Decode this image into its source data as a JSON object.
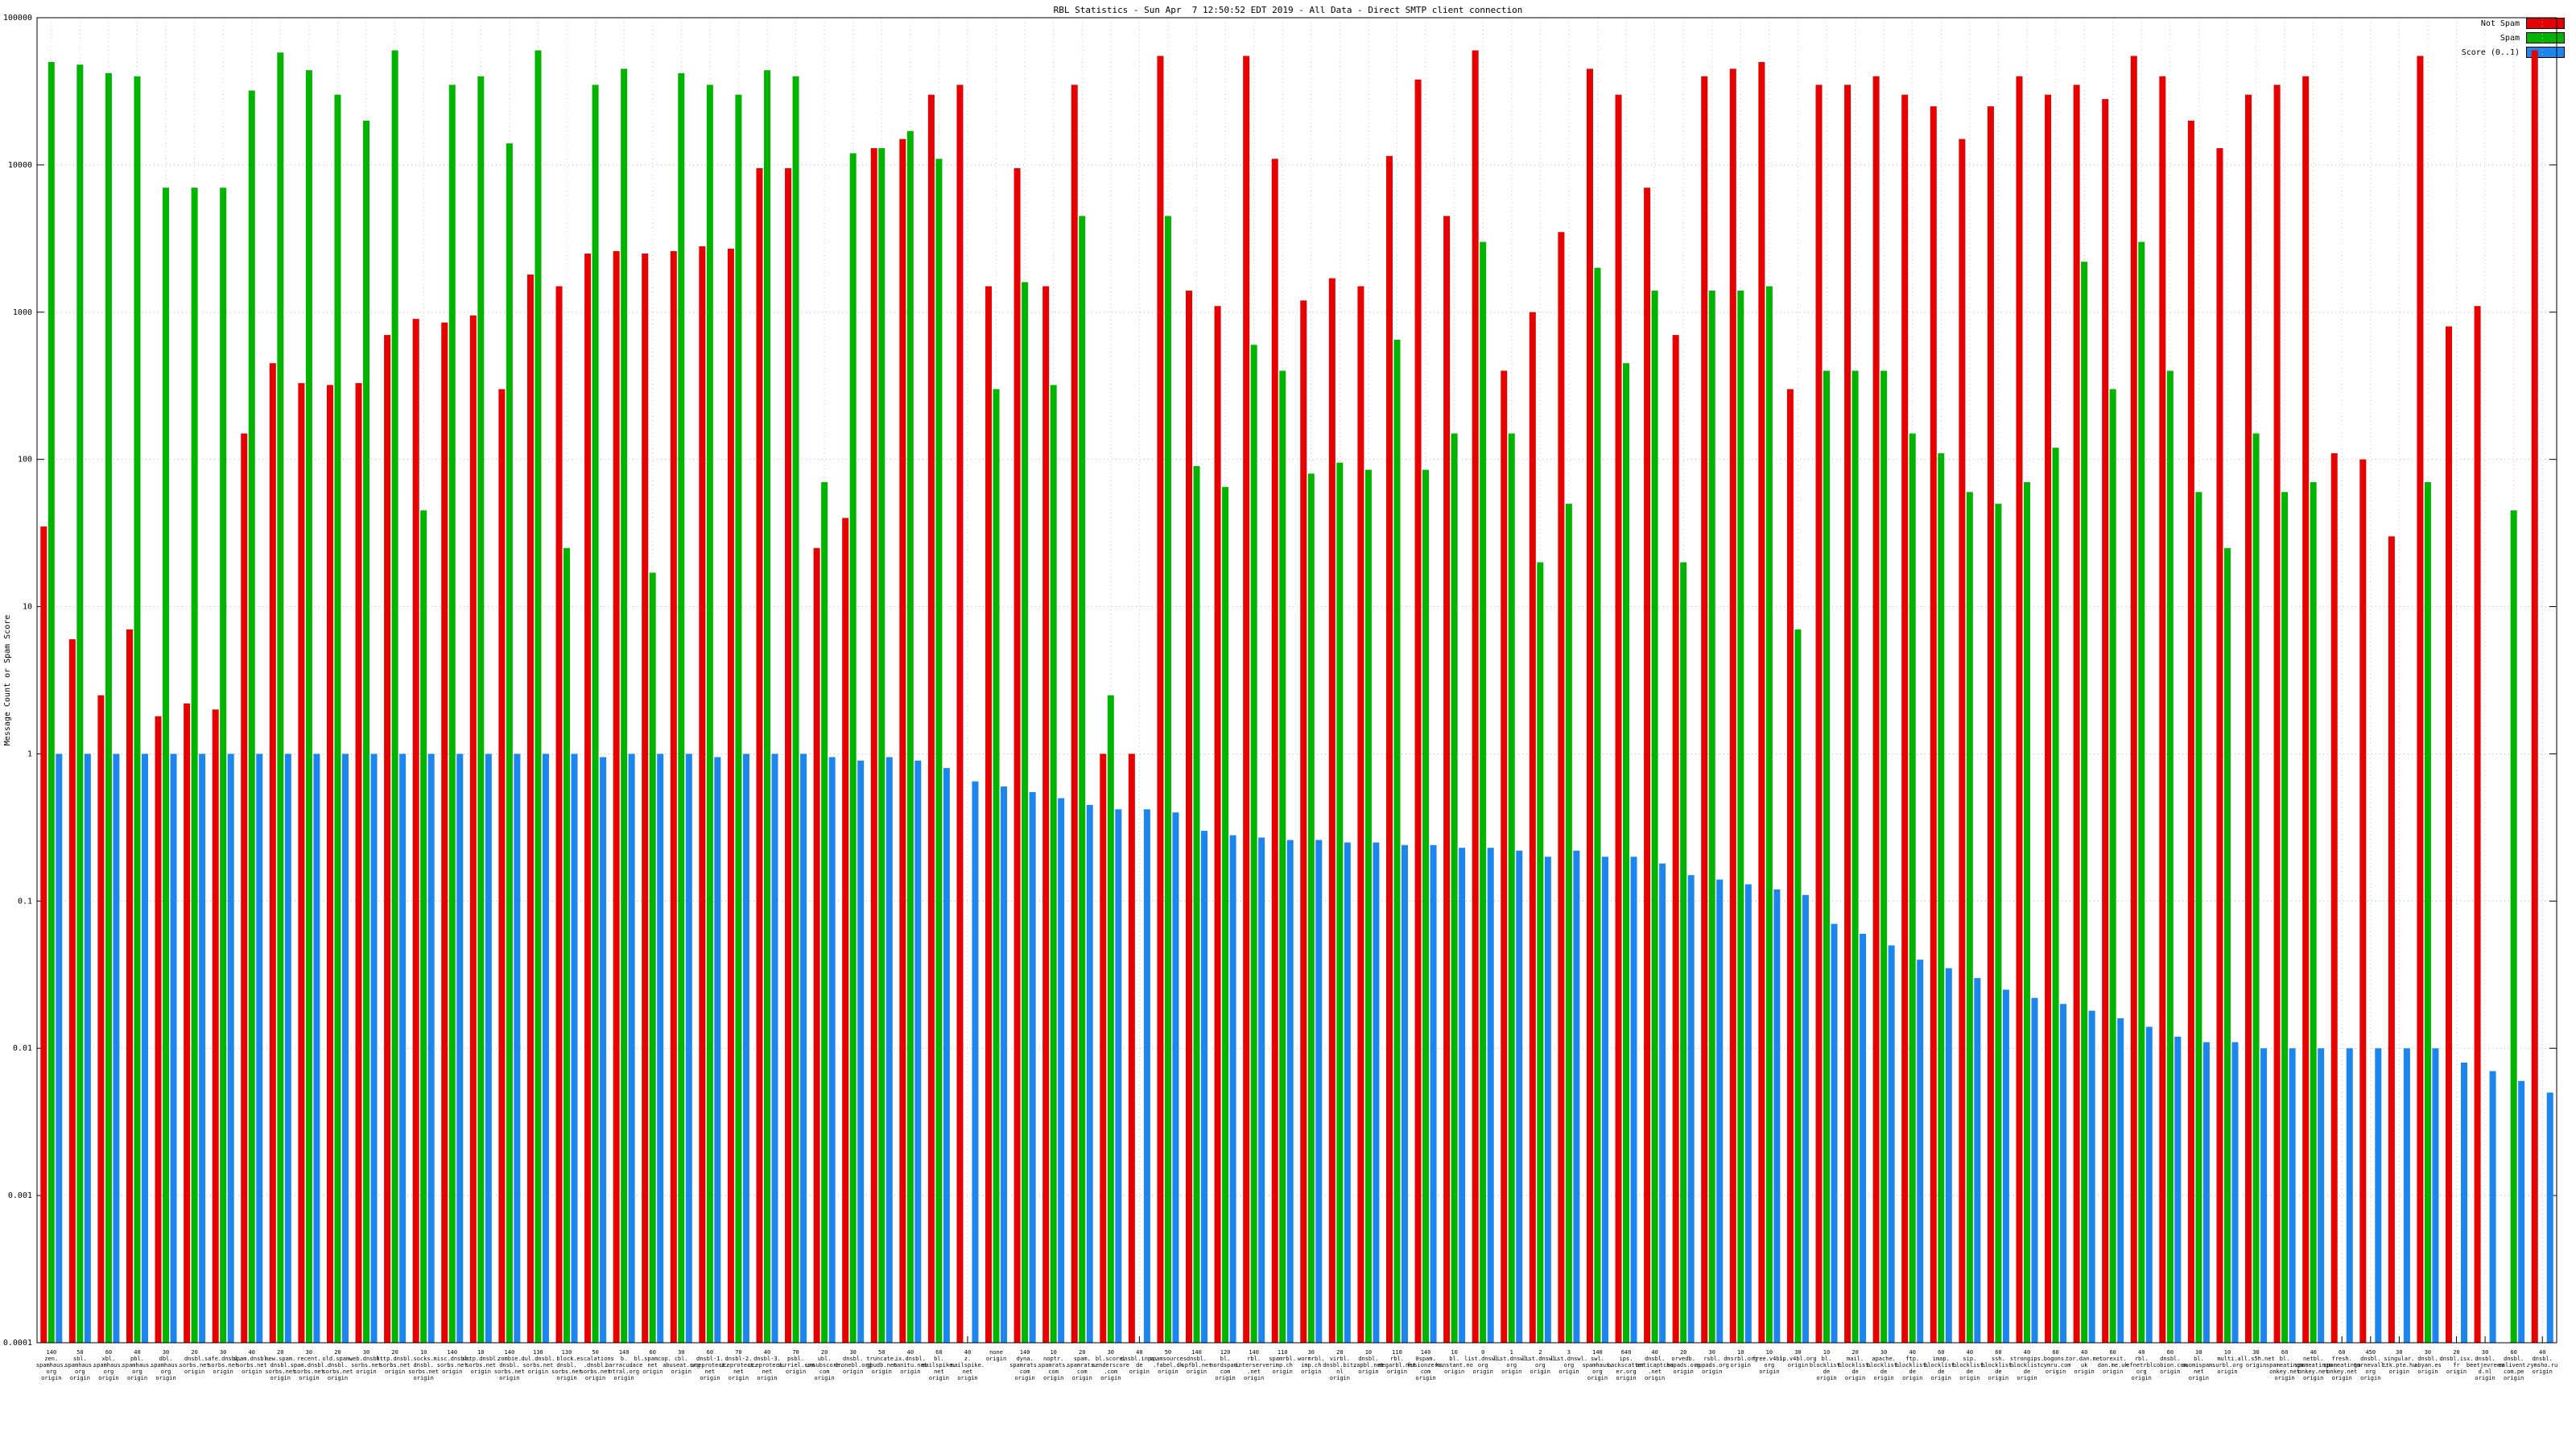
{
  "chart_data": {
    "type": "bar",
    "title": "RBL Statistics - Sun Apr  7 12:50:52 EDT 2019 - All Data - Direct SMTP client connection",
    "ylabel": "Message Count or Spam Score",
    "xlabel": "",
    "yscale": "log",
    "ylim": [
      0.0001,
      100000
    ],
    "yticks": [
      "100000",
      "10000",
      "1000",
      "100",
      "10",
      "1",
      "0.1",
      "0.01",
      "0.001",
      "0.0001"
    ],
    "grid": true,
    "legend_position": "top-right",
    "legend": [
      {
        "name": "Not Spam",
        "color": "#e60000"
      },
      {
        "name": "Spam",
        "color": "#00b400"
      },
      {
        "name": "Score (0..1)",
        "color": "#1c86ee"
      }
    ],
    "categories": [
      "140 zen.spamhaus.org origin",
      "50 sbl.spamhaus.org origin",
      "60 xbl.spamhaus.org origin",
      "40 pbl.spamhaus.org origin",
      "30 dbl.spamhaus.org origin",
      "20 dnsbl.sorbs.net origin",
      "30 safe.dnsbl.sorbs.net origin",
      "40 spam.dnsbl.sorbs.net origin",
      "20 new.spam.dnsbl.sorbs.net origin",
      "30 recent.spam.dnsbl.sorbs.net origin",
      "20 old.spam.dnsbl.sorbs.net origin",
      "30 web.dnsbl.sorbs.net origin",
      "20 http.dnsbl.sorbs.net origin",
      "10 socks.dnsbl.sorbs.net origin",
      "140 misc.dnsbl.sorbs.net origin",
      "10 smtp.dnsbl.sorbs.net origin",
      "140 zombie.dnsbl.sorbs.net origin",
      "130 dul.dnsbl.sorbs.net origin",
      "130 block.dnsbl.sorbs.net origin",
      "50 escalations.dnsbl.sorbs.net origin",
      "140 b.barracudacentral.org origin",
      "60 bl.spamcop.net origin",
      "30 cbl.abuseat.org origin",
      "60 dnsbl-1.uceprotect.net origin",
      "70 dnsbl-2.uceprotect.net origin",
      "40 dnsbl-3.uceprotect.net origin",
      "70 psbl.surriel.com origin",
      "20 ubl.unsubscore.com origin",
      "30 dnsbl.dronebl.org origin",
      "50 truncate.gbudb.net origin",
      "40 ix.dnsbl.manitu.net origin",
      "60 bl.mailspike.net origin",
      "40 z.mailspike.net origin",
      "none origin",
      "140 dyna.spamrats.com origin",
      "10 noptr.spamrats.com origin",
      "20 spam.spamrats.com origin",
      "30 bl.score.senderscore.com origin",
      "40 dnsbl.inps.de origin",
      "50 spamsources.fabel.dk origin",
      "140 dnsbl.spfbl.net origin",
      "120 bl.nordspam.com origin",
      "140 rbl.interserver.net origin",
      "110 spamrbl.imp.ch origin",
      "30 wormrbl.imp.ch origin",
      "20 virbl.dnsbl.bit.nl origin",
      "10 dnsbl.zapbl.net origin",
      "110 rbl.megarbl.net origin",
      "140 0spam.fusionzero.com origin",
      "10 bl.konstant.no origin",
      "0 list.dnswl.org origin",
      "1 list.dnswl.org origin",
      "2 list.dnswl.org origin",
      "3 list.dnswl.org origin",
      "140 swl.spamhaus.org origin",
      "640 ips.backscatterer.org origin",
      "40 dnsbl.anticaptcha.net origin",
      "20 orvedb.aupads.org origin",
      "30 rsbl.aupads.org origin",
      "10 dnsrbl.org origin",
      "10 free.v4bl.org origin",
      "30 ip.v4bl.org origin",
      "10 bl.blocklist.de origin",
      "20 mail.blocklist.de origin",
      "30 apache.blocklist.de origin",
      "40 ftp.blocklist.de origin",
      "60 imap.blocklist.de origin",
      "40 sip.blocklist.de origin",
      "60 ssh.blocklist.de origin",
      "40 strongips.blocklist.de origin",
      "60 bogons.cymru.com origin",
      "40 tor.dan.me.uk origin",
      "60 torexit.dan.me.uk origin",
      "40 rbl.efnetrbl.org origin",
      "60 dnsbl.cobion.com origin",
      "30 bl.suomispam.net origin",
      "10 multi.surbl.org origin",
      "30 all.s5h.net origin",
      "60 bl.spameatingmonkey.net origin",
      "40 netbl.spameatingmonkey.net origin",
      "60 fresh.spameatingmonkey.net origin",
      "450 dnsbl.tornevall.org origin",
      "30 singular.ttk.pte.hu origin",
      "30 dnsbl.abyan.es origin",
      "20 dnsbl.isx.fr origin",
      "30 dnsbl.beetjevreemd.nl origin",
      "60 dnsbl.calivent.com.pe origin",
      "40 dnsbl.rymsho.ru origin"
    ],
    "series": [
      {
        "name": "Not Spam",
        "color": "#e60000",
        "values": [
          35,
          6,
          2.5,
          7,
          1.8,
          2.2,
          2,
          150,
          450,
          330,
          320,
          330,
          700,
          900,
          850,
          950,
          300,
          1800,
          1500,
          2500,
          2600,
          2500,
          2600,
          2800,
          2700,
          9500,
          9500,
          25,
          40,
          13000,
          15000,
          30000,
          35000,
          1500,
          9500,
          1500,
          35000,
          1,
          1,
          55000,
          1400,
          1100,
          55000,
          11000,
          1200,
          1700,
          1500,
          11500,
          38000,
          4500,
          60000,
          400,
          1000,
          3500,
          45000,
          30000,
          7000,
          700,
          40000,
          45000,
          50000,
          300,
          35000,
          35000,
          40000,
          30000,
          25000,
          15000,
          25000,
          40000,
          30000,
          35000,
          28000,
          55000,
          40000,
          20000,
          13000,
          30000,
          35000,
          40000,
          110,
          100,
          30,
          55000,
          800,
          1100,
          0,
          60000
        ]
      },
      {
        "name": "Spam",
        "color": "#00b400",
        "values": [
          50000,
          48000,
          42000,
          40000,
          7000,
          7000,
          7000,
          32000,
          58000,
          44000,
          30000,
          20000,
          60000,
          45,
          35000,
          40000,
          14000,
          60000,
          25,
          35000,
          45000,
          17,
          42000,
          35000,
          30000,
          44000,
          40000,
          70,
          12000,
          13000,
          17000,
          11000,
          0,
          300,
          1600,
          320,
          4500,
          2.5,
          0,
          4500,
          90,
          65,
          600,
          400,
          80,
          95,
          85,
          650,
          85,
          150,
          3000,
          150,
          20,
          50,
          2000,
          450,
          1400,
          20,
          1400,
          1400,
          1500,
          7,
          400,
          400,
          400,
          150,
          110,
          60,
          50,
          70,
          120,
          2200,
          300,
          3000,
          400,
          60,
          25,
          150,
          60,
          70,
          0,
          0,
          0,
          70,
          0,
          0,
          45,
          0
        ]
      },
      {
        "name": "Score (0..1)",
        "color": "#1c86ee",
        "values": [
          1,
          1,
          1,
          1,
          1,
          1,
          1,
          1,
          1,
          1,
          1,
          1,
          1,
          1,
          1,
          1,
          1,
          1,
          1,
          0.95,
          1,
          1,
          1,
          0.95,
          1,
          1,
          1,
          0.95,
          0.9,
          0.95,
          0.9,
          0.8,
          0.65,
          0.6,
          0.55,
          0.5,
          0.45,
          0.42,
          0.42,
          0.4,
          0.3,
          0.28,
          0.27,
          0.26,
          0.26,
          0.25,
          0.25,
          0.24,
          0.24,
          0.23,
          0.23,
          0.22,
          0.2,
          0.22,
          0.2,
          0.2,
          0.18,
          0.15,
          0.14,
          0.13,
          0.12,
          0.11,
          0.07,
          0.06,
          0.05,
          0.04,
          0.035,
          0.03,
          0.025,
          0.022,
          0.02,
          0.018,
          0.016,
          0.014,
          0.012,
          0.011,
          0.011,
          0.01,
          0.01,
          0.01,
          0.01,
          0.01,
          0.01,
          0.01,
          0.008,
          0.007,
          0.006,
          0.005
        ]
      }
    ]
  }
}
